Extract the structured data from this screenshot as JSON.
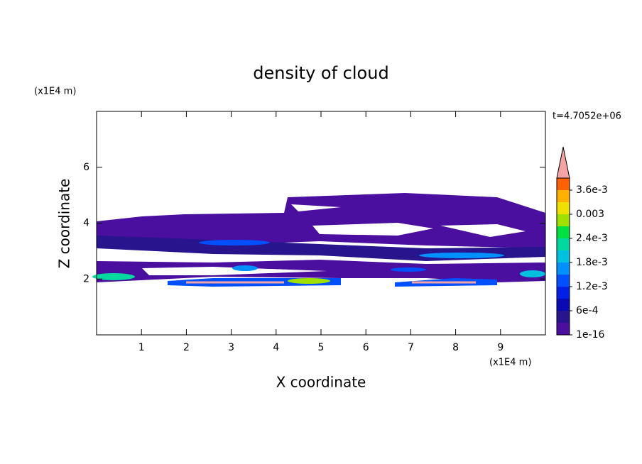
{
  "chart_data": {
    "type": "contour",
    "title": "density of cloud",
    "x_label": "X coordinate",
    "y_label": "Z coordinate",
    "x_unit": "(x1E4 m)",
    "y_unit": "(x1E4 m)",
    "annotation": "t=4.7052e+06",
    "xlim": [
      0,
      10
    ],
    "xticks": [
      1,
      2,
      3,
      4,
      5,
      6,
      7,
      8,
      9
    ],
    "ylim": [
      0,
      8
    ],
    "yticks": [
      2,
      4,
      6
    ],
    "colorbar": {
      "lim": [
        0,
        0.0039
      ],
      "ticks": [
        1e-16,
        {
          "value": 0.0006,
          "label": "6e-4"
        },
        {
          "value": 0.0012,
          "label": "1.2e-3"
        },
        {
          "value": 0.0018,
          "label": "1.8e-3"
        },
        {
          "value": 0.0024,
          "label": "2.4e-3"
        },
        0.003,
        {
          "value": 0.0036,
          "label": "3.6e-3"
        }
      ],
      "colors": [
        "#4b0f9f",
        "#28148c",
        "#0a0ab4",
        "#0020e6",
        "#0050ff",
        "#0090ff",
        "#00c0e0",
        "#00d8a0",
        "#00e040",
        "#a0e000",
        "#f0e000",
        "#ffb000",
        "#ff6000"
      ],
      "extend_color": "#f4a4a4"
    }
  }
}
